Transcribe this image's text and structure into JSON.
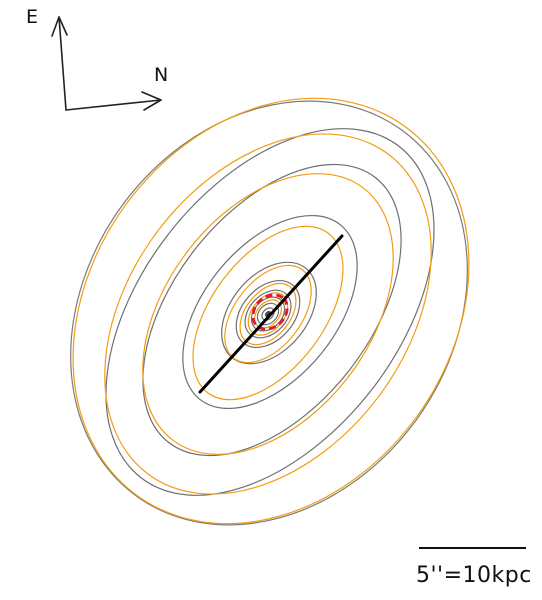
{
  "compass": {
    "east_label": "E",
    "north_label": "N"
  },
  "scale_bar": {
    "label": "5''=10kpc"
  },
  "colors": {
    "model_contours": "#f39c12",
    "observed_contours": "#6f6f6f",
    "major_axis": "#000000",
    "core_marker": "#e0192b",
    "arrows": "#222222"
  }
}
